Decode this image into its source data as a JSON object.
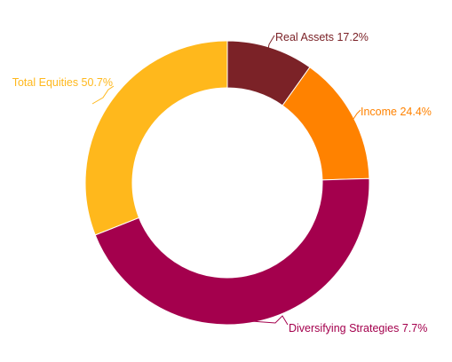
{
  "chart_data": {
    "type": "pie",
    "donut": true,
    "title": "",
    "slices": [
      {
        "label": "Real Assets 17.2%",
        "name": "Real Assets",
        "value": 17.2,
        "color": "#7b2227"
      },
      {
        "label": "Income 24.4%",
        "name": "Income",
        "value": 24.4,
        "color": "#ff8200"
      },
      {
        "label": "Diversifying Strategies 7.7%",
        "name": "Diversifying Strategies",
        "value": 7.7,
        "color": "#a4004d"
      },
      {
        "label": "Total Equities 50.7%",
        "name": "Total Equities",
        "value": 50.7,
        "color": "#ffb81c"
      }
    ],
    "legend": "none"
  }
}
